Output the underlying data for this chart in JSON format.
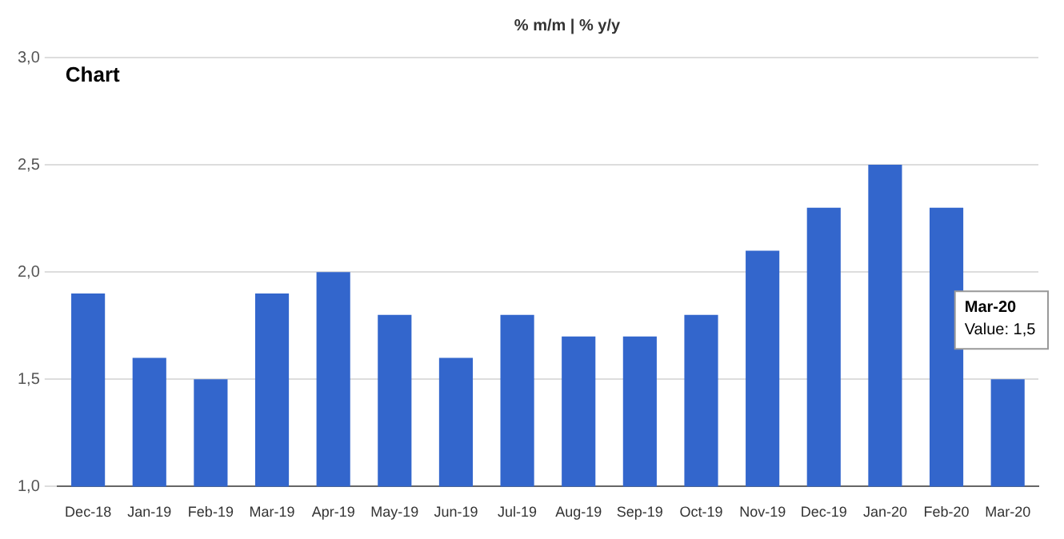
{
  "chart_data": {
    "type": "bar",
    "title": "Chart",
    "subtitle": "% m/m | % y/y",
    "categories": [
      "Dec-18",
      "Jan-19",
      "Feb-19",
      "Mar-19",
      "Apr-19",
      "May-19",
      "Jun-19",
      "Jul-19",
      "Aug-19",
      "Sep-19",
      "Oct-19",
      "Nov-19",
      "Dec-19",
      "Jan-20",
      "Feb-20",
      "Mar-20"
    ],
    "values": [
      1.9,
      1.6,
      1.5,
      1.9,
      2.0,
      1.8,
      1.6,
      1.8,
      1.7,
      1.7,
      1.8,
      2.1,
      2.3,
      2.5,
      2.3,
      1.5
    ],
    "color": "#3366cc",
    "ylim": [
      1,
      3
    ],
    "yticks": [
      {
        "value": 1,
        "label": "1,0"
      },
      {
        "value": 1.5,
        "label": "1,5"
      },
      {
        "value": 2,
        "label": "2,0"
      },
      {
        "value": 2.5,
        "label": "2,5"
      },
      {
        "value": 3,
        "label": "3,0"
      }
    ],
    "grid": "y",
    "annotations": [
      {
        "text": "Mar-20\nValue: 1,5",
        "x": "Mar-20",
        "y": 1.5
      }
    ]
  }
}
